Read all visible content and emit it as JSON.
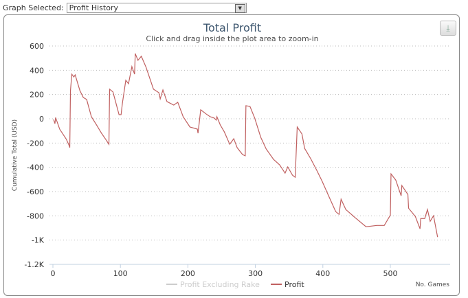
{
  "selector": {
    "label": "Graph Selected:",
    "value": "Profit History"
  },
  "chart_data": {
    "type": "line",
    "title": "Total Profit",
    "subtitle": "Click and drag inside the plot area to zoom-in",
    "xlabel": "No. Games",
    "ylabel": "Cumulative Total (USD)",
    "xlim": [
      0,
      590
    ],
    "ylim": [
      -1200,
      600
    ],
    "xticks": [
      "0",
      "100",
      "200",
      "300",
      "400",
      "500"
    ],
    "xtick_values": [
      0,
      100,
      200,
      300,
      400,
      500
    ],
    "yticks": [
      "600",
      "400",
      "200",
      "0",
      "-200",
      "-400",
      "-600",
      "-800",
      "-1K",
      "-1.2K"
    ],
    "ytick_values": [
      600,
      400,
      200,
      0,
      -200,
      -400,
      -600,
      -800,
      -1000,
      -1200
    ],
    "grid": true,
    "legend": [
      {
        "name": "Profit Excluding Rake",
        "color": "#cccccc",
        "visible": false
      },
      {
        "name": "Profit",
        "color": "#c06060",
        "visible": true
      }
    ],
    "legend_position": "bottom",
    "series": [
      {
        "name": "Profit",
        "x": [
          1,
          3,
          4,
          10,
          20,
          24,
          25,
          26,
          28,
          31,
          33,
          40,
          45,
          50,
          57,
          64,
          72,
          79,
          83,
          84,
          89,
          98,
          101,
          103,
          108,
          112,
          117,
          121,
          122,
          126,
          131,
          138,
          149,
          157,
          159,
          163,
          169,
          179,
          185,
          193,
          203,
          214,
          215,
          219,
          227,
          233,
          239,
          242,
          243,
          248,
          254,
          262,
          268,
          273,
          281,
          285,
          286,
          292,
          299,
          308,
          316,
          327,
          336,
          344,
          348,
          355,
          359,
          362,
          369,
          373,
          382,
          391,
          399,
          409,
          419,
          424,
          427,
          434,
          447,
          464,
          480,
          491,
          500,
          501,
          508,
          516,
          517,
          526,
          527,
          537,
          544,
          545,
          551,
          555,
          559,
          564,
          570
        ],
        "y": [
          -5,
          -40,
          10,
          -85,
          -170,
          -220,
          -238,
          232,
          368,
          345,
          362,
          232,
          176,
          159,
          17,
          -45,
          -119,
          -176,
          -210,
          244,
          221,
          34,
          34,
          130,
          318,
          289,
          430,
          368,
          538,
          482,
          516,
          425,
          244,
          215,
          164,
          238,
          142,
          113,
          136,
          17,
          -68,
          -85,
          -119,
          74,
          40,
          17,
          6,
          -11,
          17,
          -51,
          -108,
          -210,
          -164,
          -238,
          -295,
          -305,
          108,
          102,
          6,
          -153,
          -249,
          -335,
          -380,
          -448,
          -397,
          -465,
          -482,
          -68,
          -125,
          -244,
          -329,
          -425,
          -516,
          -641,
          -765,
          -788,
          -663,
          -748,
          -811,
          -890,
          -879,
          -879,
          -794,
          -454,
          -505,
          -635,
          -550,
          -624,
          -737,
          -805,
          -907,
          -822,
          -822,
          -748,
          -845,
          -799,
          -975
        ]
      }
    ]
  }
}
